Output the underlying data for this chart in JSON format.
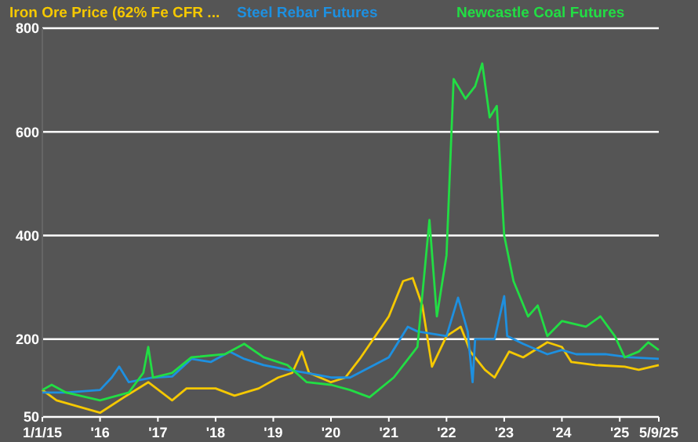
{
  "chart_data": {
    "type": "line",
    "xlim": [
      "2015-01-01",
      "2025-09-05"
    ],
    "xticks": [
      {
        "value": "2015-01-01",
        "label": "1/1/15"
      },
      {
        "value": "2016-01-01",
        "label": "'16"
      },
      {
        "value": "2017-01-01",
        "label": "'17"
      },
      {
        "value": "2018-01-01",
        "label": "'18"
      },
      {
        "value": "2019-01-01",
        "label": "'19"
      },
      {
        "value": "2020-01-01",
        "label": "'20"
      },
      {
        "value": "2021-01-01",
        "label": "'21"
      },
      {
        "value": "2022-01-01",
        "label": "'22"
      },
      {
        "value": "2023-01-01",
        "label": "'23"
      },
      {
        "value": "2024-01-01",
        "label": "'24"
      },
      {
        "value": "2025-01-01",
        "label": "'25"
      },
      {
        "value": "2025-09-05",
        "label": "5/9/25"
      }
    ],
    "ylim": [
      50,
      800
    ],
    "yticks": [
      50,
      200,
      400,
      600,
      800
    ],
    "grid": "y",
    "legend": "top left",
    "series": [
      {
        "name": "Iron Ore Price (62% Fe CFR ...",
        "color": "#f5c800",
        "x": [
          "2015-01-01",
          "2015-04-01",
          "2016-01-01",
          "2016-06-01",
          "2016-11-01",
          "2017-04-01",
          "2017-07-01",
          "2018-01-01",
          "2018-05-01",
          "2018-10-01",
          "2019-02-01",
          "2019-05-01",
          "2019-07-01",
          "2019-08-15",
          "2020-01-01",
          "2020-04-01",
          "2020-07-01",
          "2021-01-01",
          "2021-04-01",
          "2021-06-01",
          "2021-08-01",
          "2021-10-01",
          "2022-01-01",
          "2022-04-01",
          "2022-06-01",
          "2022-09-01",
          "2022-11-01",
          "2023-02-01",
          "2023-05-01",
          "2023-10-01",
          "2024-01-01",
          "2024-03-01",
          "2024-08-01",
          "2025-02-01",
          "2025-05-01",
          "2025-09-05"
        ],
        "values": [
          102,
          82,
          58,
          88,
          117,
          82,
          105,
          105,
          91,
          105,
          126,
          135,
          176,
          135,
          117,
          126,
          162,
          244,
          312,
          318,
          265,
          147,
          206,
          224,
          176,
          141,
          126,
          176,
          165,
          194,
          185,
          156,
          150,
          147,
          141,
          150
        ]
      },
      {
        "name": "Steel Rebar Futures",
        "color": "#1e90e0",
        "x": [
          "2015-01-01",
          "2015-06-01",
          "2016-01-01",
          "2016-03-15",
          "2016-05-01",
          "2016-07-01",
          "2016-12-01",
          "2017-04-01",
          "2017-08-01",
          "2017-12-01",
          "2018-04-01",
          "2018-07-01",
          "2018-11-01",
          "2019-04-01",
          "2019-08-01",
          "2020-01-01",
          "2020-05-01",
          "2021-01-01",
          "2021-05-01",
          "2021-07-01",
          "2022-01-01",
          "2022-03-15",
          "2022-05-15",
          "2022-06-15",
          "2022-07-01",
          "2022-11-01",
          "2023-01-01",
          "2023-01-20",
          "2023-05-01",
          "2023-10-01",
          "2024-01-01",
          "2024-04-01",
          "2024-10-01",
          "2025-03-01",
          "2025-09-05"
        ],
        "values": [
          97,
          97,
          102,
          126,
          147,
          117,
          126,
          128,
          162,
          156,
          176,
          162,
          150,
          141,
          135,
          126,
          126,
          165,
          224,
          215,
          206,
          280,
          215,
          117,
          200,
          200,
          283,
          206,
          191,
          171,
          179,
          171,
          171,
          165,
          162
        ]
      },
      {
        "name": "Newcastle Coal Futures",
        "color": "#22dd44",
        "x": [
          "2015-01-01",
          "2015-03-01",
          "2015-06-01",
          "2016-01-01",
          "2016-07-01",
          "2016-10-01",
          "2016-11-01",
          "2016-12-01",
          "2017-04-01",
          "2017-08-01",
          "2018-03-01",
          "2018-07-01",
          "2018-11-01",
          "2019-04-01",
          "2019-08-01",
          "2020-01-01",
          "2020-05-01",
          "2020-09-01",
          "2021-02-01",
          "2021-07-01",
          "2021-09-15",
          "2021-11-01",
          "2022-01-01",
          "2022-02-15",
          "2022-05-01",
          "2022-07-01",
          "2022-08-15",
          "2022-10-01",
          "2022-11-15",
          "2023-01-01",
          "2023-03-01",
          "2023-06-01",
          "2023-08-01",
          "2023-10-01",
          "2024-01-01",
          "2024-06-01",
          "2024-09-01",
          "2024-12-01",
          "2025-02-01",
          "2025-05-01",
          "2025-07-01",
          "2025-09-05"
        ],
        "values": [
          102,
          112,
          97,
          82,
          97,
          135,
          185,
          126,
          135,
          165,
          171,
          191,
          165,
          150,
          117,
          112,
          102,
          88,
          126,
          185,
          430,
          244,
          362,
          702,
          664,
          688,
          732,
          628,
          650,
          400,
          312,
          244,
          265,
          206,
          235,
          224,
          244,
          206,
          165,
          176,
          194,
          179
        ]
      }
    ]
  }
}
